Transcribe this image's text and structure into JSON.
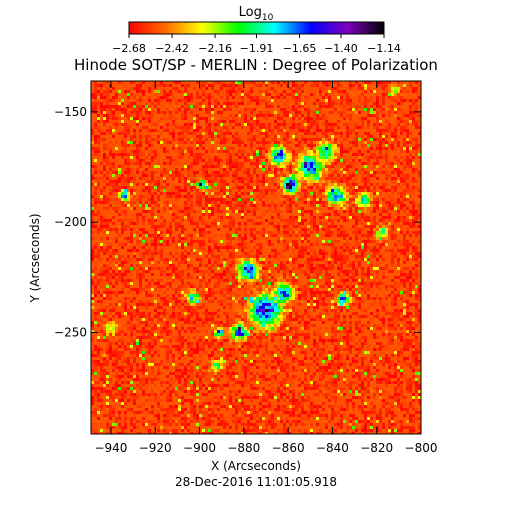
{
  "chart_data": {
    "type": "heatmap",
    "title": "Hinode SOT/SP - MERLIN : Degree of Polarization",
    "xlabel": "X (Arcseconds)",
    "ylabel": "Y (Arcseconds)",
    "timestamp": "28-Dec-2016 11:01:05.918",
    "xlim": [
      -949,
      -800
    ],
    "ylim": [
      -296,
      -136
    ],
    "x_ticks": [
      -940,
      -920,
      -900,
      -880,
      -860,
      -840,
      -820,
      -800
    ],
    "y_ticks": [
      -150,
      -200,
      -250
    ],
    "x_tick_labels": [
      "−940",
      "−920",
      "−900",
      "−880",
      "−860",
      "−840",
      "−820",
      "−800"
    ],
    "y_tick_labels": [
      "−150",
      "−200",
      "−250"
    ],
    "colorbar": {
      "label_base": "Log",
      "label_sub": "10",
      "range": [
        -2.68,
        -1.14
      ],
      "ticks": [
        -2.68,
        -2.42,
        -2.16,
        -1.91,
        -1.65,
        -1.4,
        -1.14
      ],
      "tick_labels": [
        "−2.68",
        "−2.42",
        "−2.16",
        "−1.91",
        "−1.65",
        "−1.40",
        "−1.14"
      ],
      "colormap": [
        "#ff0000",
        "#ff6a00",
        "#ffff00",
        "#00ff00",
        "#00ffff",
        "#0000ff",
        "#8000c0",
        "#000000"
      ]
    },
    "background_level": -2.62,
    "features": [
      {
        "x": -870,
        "y": -240,
        "peak": -1.35,
        "spread": 5
      },
      {
        "x": -878,
        "y": -222,
        "peak": -1.4,
        "spread": 3
      },
      {
        "x": -862,
        "y": -232,
        "peak": -1.5,
        "spread": 3
      },
      {
        "x": -882,
        "y": -250,
        "peak": -1.45,
        "spread": 2.5
      },
      {
        "x": -859,
        "y": -183,
        "peak": -1.14,
        "spread": 2.5
      },
      {
        "x": -850,
        "y": -175,
        "peak": -1.5,
        "spread": 4
      },
      {
        "x": -864,
        "y": -170,
        "peak": -1.6,
        "spread": 3
      },
      {
        "x": -843,
        "y": -168,
        "peak": -1.7,
        "spread": 3
      },
      {
        "x": -838,
        "y": -188,
        "peak": -1.6,
        "spread": 3
      },
      {
        "x": -835,
        "y": -235,
        "peak": -1.55,
        "spread": 2
      },
      {
        "x": -899,
        "y": -183,
        "peak": -1.35,
        "spread": 1.5
      },
      {
        "x": -934,
        "y": -188,
        "peak": -1.55,
        "spread": 1.5
      },
      {
        "x": -891,
        "y": -250,
        "peak": -1.6,
        "spread": 1.5
      },
      {
        "x": -903,
        "y": -234,
        "peak": -1.8,
        "spread": 2
      },
      {
        "x": -826,
        "y": -190,
        "peak": -1.85,
        "spread": 2.5
      },
      {
        "x": -818,
        "y": -205,
        "peak": -1.95,
        "spread": 2
      },
      {
        "x": -892,
        "y": -265,
        "peak": -1.95,
        "spread": 2
      },
      {
        "x": -940,
        "y": -248,
        "peak": -2.05,
        "spread": 2
      },
      {
        "x": -812,
        "y": -140,
        "peak": -2.05,
        "spread": 2
      }
    ]
  }
}
